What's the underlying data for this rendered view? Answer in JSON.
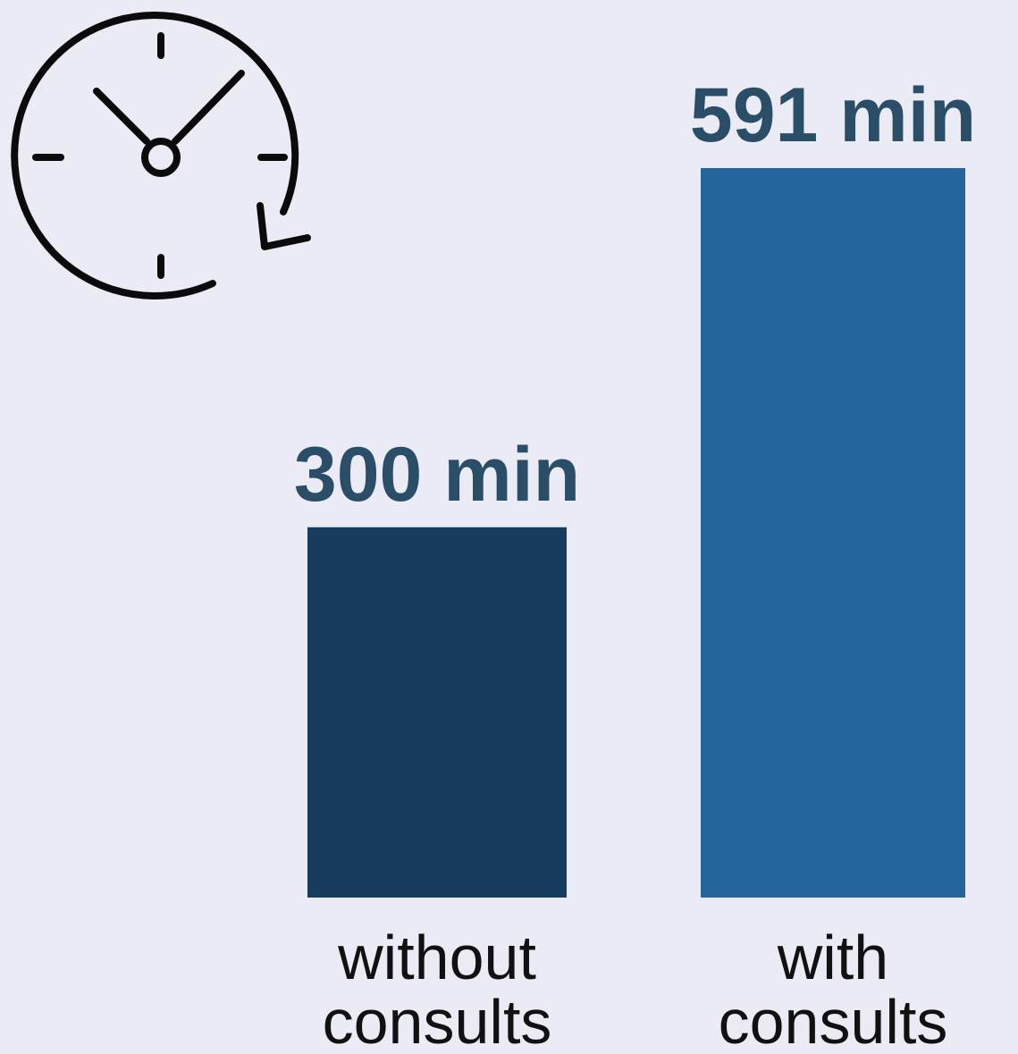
{
  "icon": "clock-history-icon",
  "colors": {
    "background": "#ebebf5",
    "value_label": "#2a4d68",
    "icon_stroke": "#0b0b0b"
  },
  "chart_data": {
    "type": "bar",
    "categories": [
      {
        "lines": [
          "without",
          "consults"
        ]
      },
      {
        "lines": [
          "with",
          "consults"
        ]
      }
    ],
    "values": [
      300,
      591
    ],
    "value_labels": [
      "300 min",
      "591 min"
    ],
    "unit": "min",
    "bar_colors": [
      "#173c5e",
      "#24659c"
    ],
    "title": "",
    "xlabel": "",
    "ylabel": "",
    "ylim": [
      0,
      591
    ],
    "grid": false,
    "legend": "none"
  }
}
